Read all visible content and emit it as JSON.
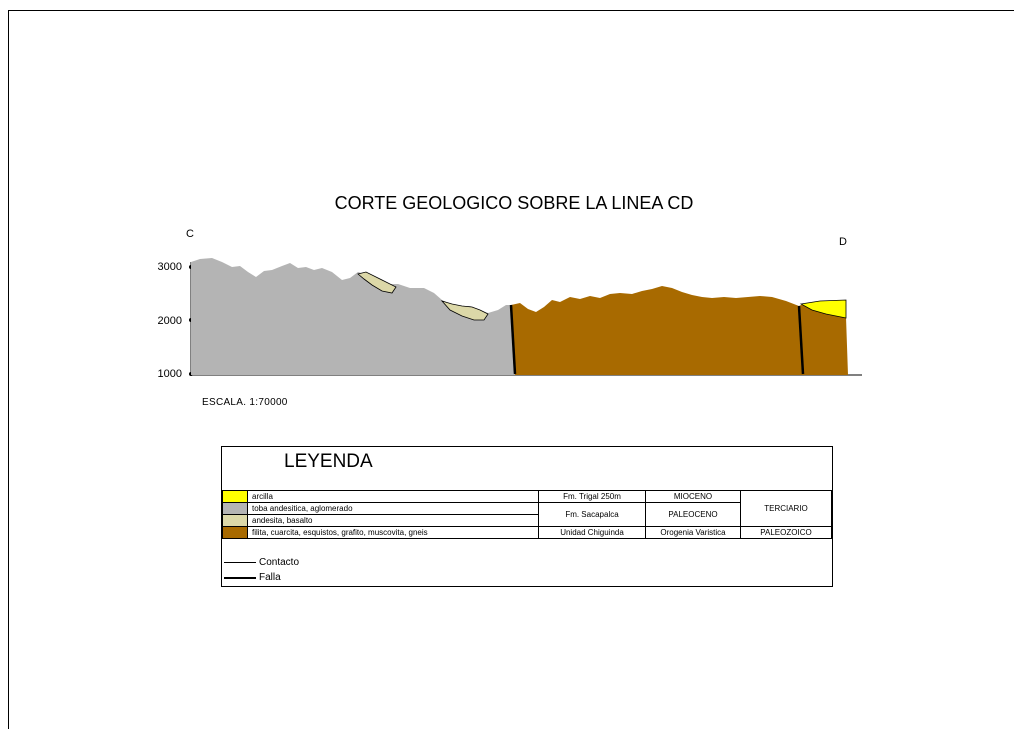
{
  "title": "CORTE GEOLOGICO SOBRE LA LINEA CD",
  "point_start": "C",
  "point_end": "D",
  "scale": "ESCALA. 1:70000",
  "elevation_ticks": [
    {
      "value": 3000,
      "label": "3000"
    },
    {
      "value": 2000,
      "label": "2000"
    },
    {
      "value": 1000,
      "label": "1000"
    }
  ],
  "colors": {
    "arcilla": "#ffff00",
    "toba": "#b4b4b4",
    "andesita": "#dcd8a8",
    "filita": "#a86a00"
  },
  "legend": {
    "title": "LEYENDA",
    "units": [
      {
        "color": "#ffff00",
        "desc": "arcilla"
      },
      {
        "color": "#b4b4b4",
        "desc": "toba andesitica, aglomerado"
      },
      {
        "color": "#dcd8a8",
        "desc": "andesita, basalto"
      },
      {
        "color": "#a86a00",
        "desc": "filita, cuarcita, esquistos, grafito, muscovita, gneis"
      }
    ],
    "formations": [
      "Fm. Trigal 250m",
      "Fm. Sacapalca",
      "Unidad Chiguinda"
    ],
    "ages": [
      "MIOCENO",
      "PALEOCENO",
      "Orogenia Varistica"
    ],
    "eras": [
      "TERCIARIO",
      "PALEOZOICO"
    ],
    "lines": [
      {
        "style": "thin",
        "label": "Contacto"
      },
      {
        "style": "thick",
        "label": "Falla"
      }
    ]
  }
}
